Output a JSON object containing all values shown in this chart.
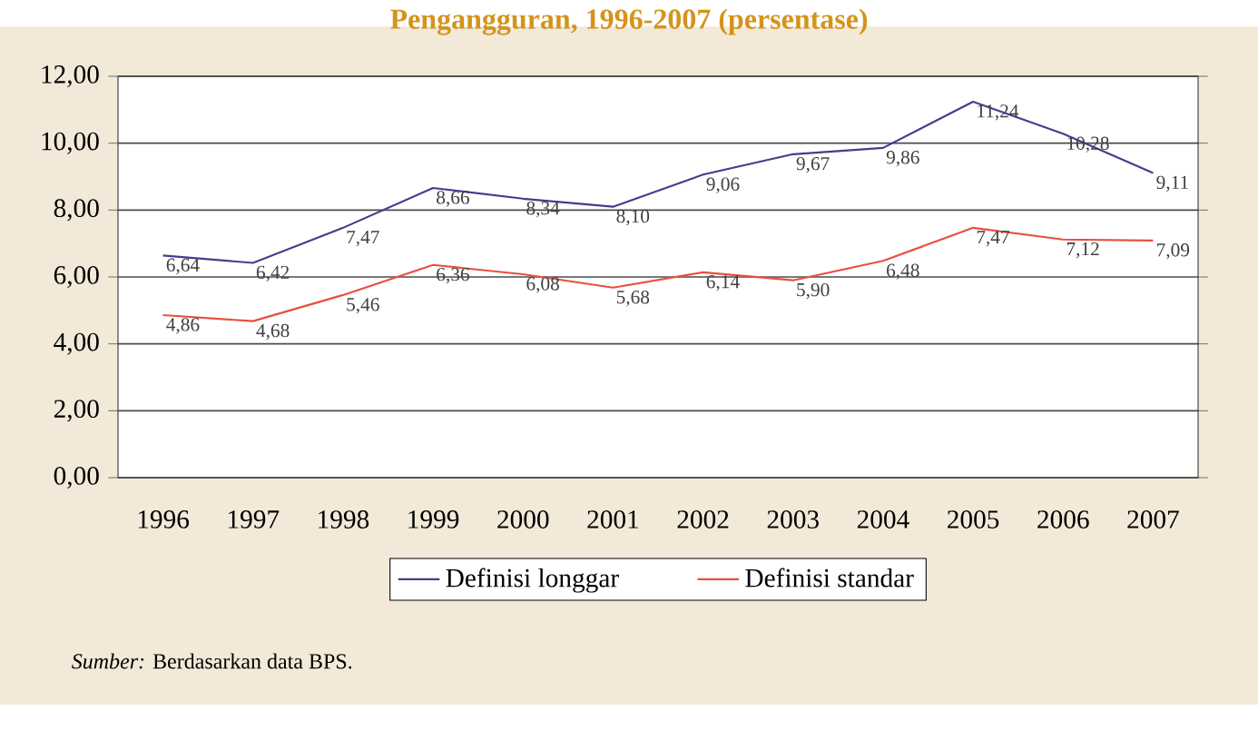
{
  "chart_data": {
    "type": "line",
    "title": "Pengangguran, 1996-2007 (persentase)",
    "categories": [
      "1996",
      "1997",
      "1998",
      "1999",
      "2000",
      "2001",
      "2002",
      "2003",
      "2004",
      "2005",
      "2006",
      "2007"
    ],
    "series": [
      {
        "name": "Definisi longgar",
        "color": "#3f3f8f",
        "values": [
          6.64,
          6.42,
          7.47,
          8.66,
          8.34,
          8.1,
          9.06,
          9.67,
          9.86,
          11.24,
          10.28,
          9.11
        ],
        "value_labels": [
          "6,64",
          "6,42",
          "7,47",
          "8,66",
          "8,34",
          "8,10",
          "9,06",
          "9,67",
          "9,86",
          "11,24",
          "10,28",
          "9,11"
        ]
      },
      {
        "name": "Definisi standar",
        "color": "#e8503c",
        "values": [
          4.86,
          4.68,
          5.46,
          6.36,
          6.08,
          5.68,
          6.14,
          5.9,
          6.48,
          7.47,
          7.12,
          7.09
        ],
        "value_labels": [
          "4,86",
          "4,68",
          "5,46",
          "6,36",
          "6,08",
          "5,68",
          "6,14",
          "5,90",
          "6,48",
          "7,47",
          "7,12",
          "7,09"
        ]
      }
    ],
    "ylim": [
      0,
      12
    ],
    "yticks": [
      {
        "value": 0,
        "label": "0,00"
      },
      {
        "value": 2,
        "label": "2,00"
      },
      {
        "value": 4,
        "label": "4,00"
      },
      {
        "value": 6,
        "label": "6,00"
      },
      {
        "value": 8,
        "label": "8,00"
      },
      {
        "value": 10,
        "label": "10,00"
      },
      {
        "value": 12,
        "label": "12,00"
      }
    ],
    "grid": "y",
    "legend": "bottom",
    "marker": "none",
    "line_style": "solid",
    "annotations": [
      "*Sumber:* Berdasarkan data BPS."
    ]
  }
}
